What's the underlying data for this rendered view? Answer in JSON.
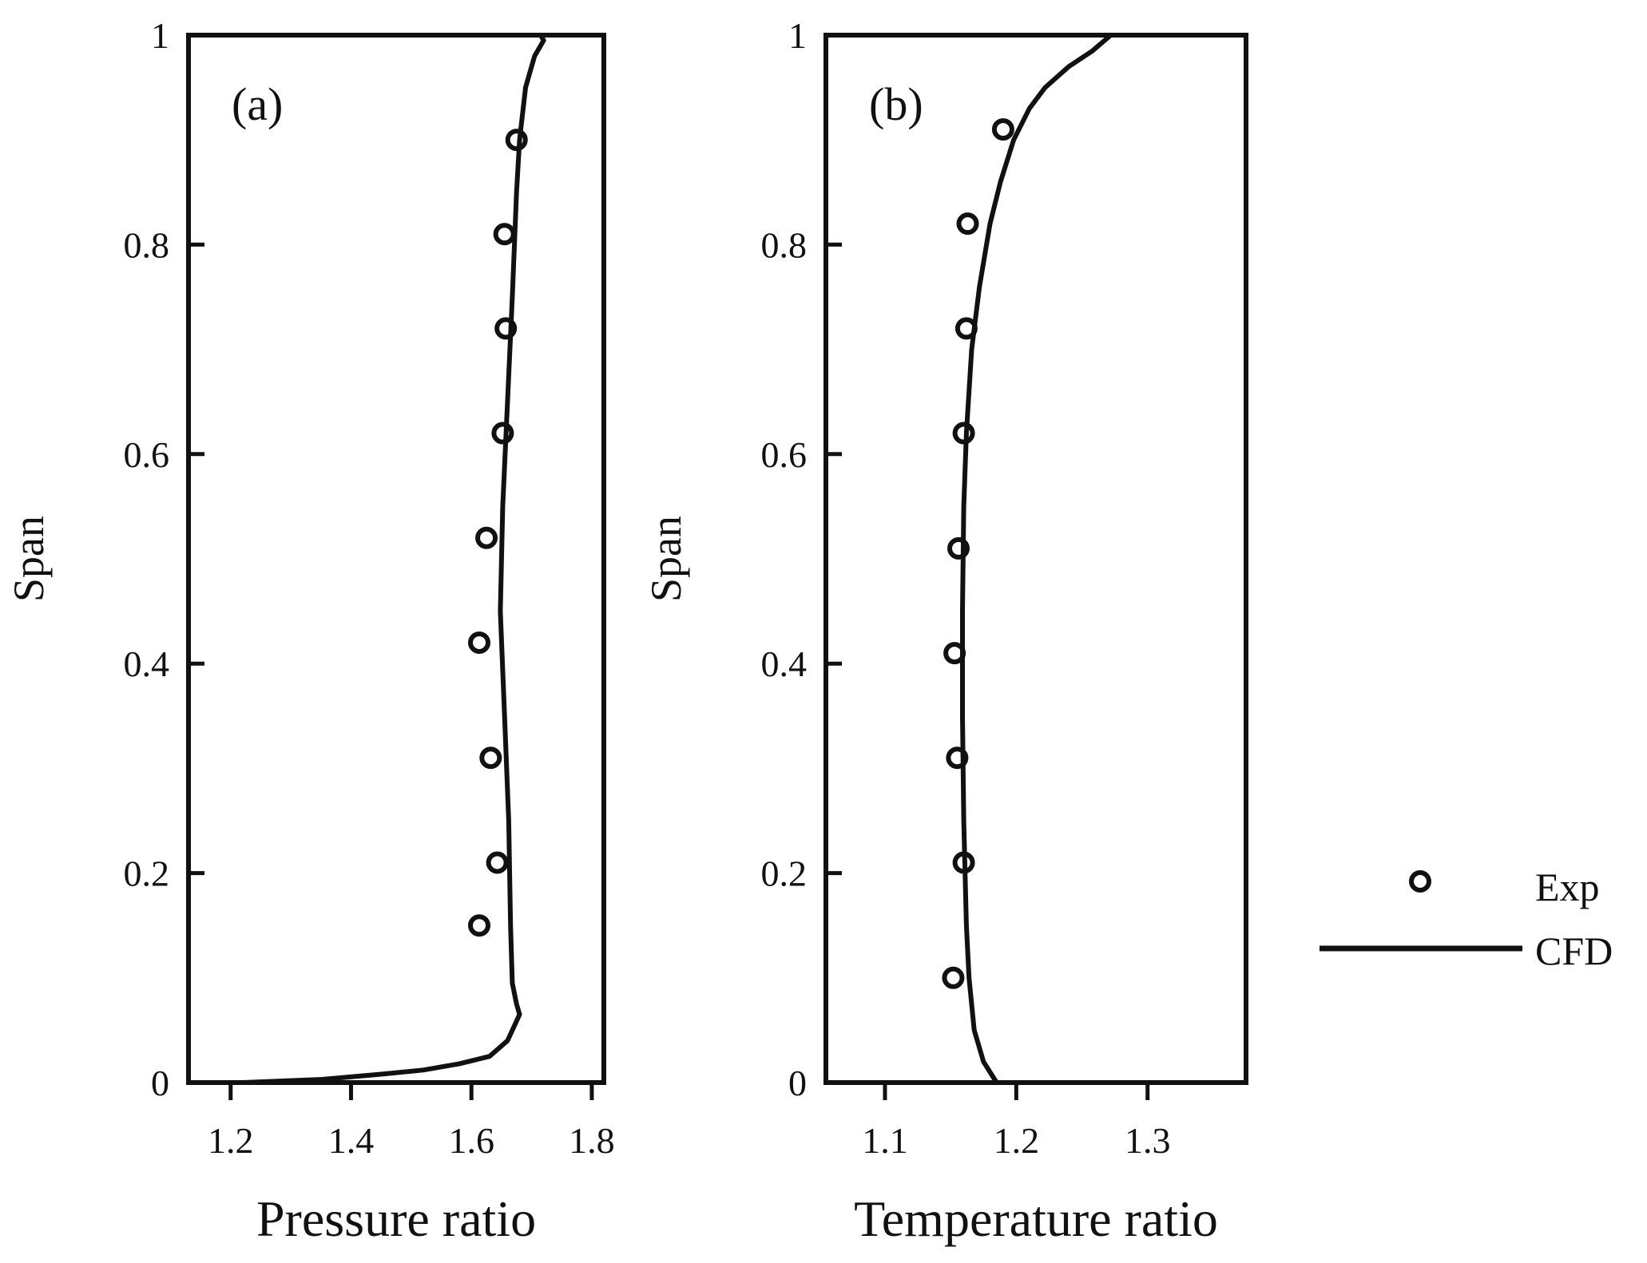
{
  "chart_data": [
    {
      "type": "line",
      "panel_label": "(a)",
      "xlabel": "Pressure ratio",
      "ylabel": "Span",
      "xlim": [
        1.13,
        1.82
      ],
      "ylim": [
        0,
        1
      ],
      "xticks": [
        1.2,
        1.4,
        1.6,
        1.8
      ],
      "xtick_labels": [
        "1.2",
        "1.4",
        "1.6",
        "1.8"
      ],
      "yticks": [
        0,
        0.2,
        0.4,
        0.6,
        0.8,
        1
      ],
      "ytick_labels": [
        "0",
        "0.2",
        "0.4",
        "0.6",
        "0.8",
        "1"
      ],
      "grid": false,
      "series": [
        {
          "name": "Exp",
          "marker": "open-circle",
          "x": [
            1.675,
            1.655,
            1.657,
            1.652,
            1.625,
            1.613,
            1.632,
            1.643,
            1.613
          ],
          "y": [
            0.9,
            0.81,
            0.72,
            0.62,
            0.52,
            0.42,
            0.31,
            0.21,
            0.15
          ]
        },
        {
          "name": "CFD",
          "marker": "line",
          "x": [
            1.22,
            1.35,
            1.45,
            1.52,
            1.58,
            1.63,
            1.66,
            1.68,
            1.675,
            1.668,
            1.665,
            1.662,
            1.655,
            1.648,
            1.652,
            1.66,
            1.668,
            1.675,
            1.68,
            1.69,
            1.705,
            1.72,
            1.715,
            1.62,
            1.13
          ],
          "y": [
            0.0,
            0.003,
            0.008,
            0.012,
            0.018,
            0.025,
            0.04,
            0.065,
            0.075,
            0.095,
            0.15,
            0.25,
            0.35,
            0.45,
            0.55,
            0.65,
            0.75,
            0.85,
            0.9,
            0.95,
            0.98,
            0.995,
            1.0,
            1.0,
            1.0
          ]
        }
      ]
    },
    {
      "type": "line",
      "panel_label": "(b)",
      "xlabel": "Temperature ratio",
      "ylabel": "Span",
      "xlim": [
        1.055,
        1.375
      ],
      "ylim": [
        0,
        1
      ],
      "xticks": [
        1.1,
        1.2,
        1.3
      ],
      "xtick_labels": [
        "1.1",
        "1.2",
        "1.3"
      ],
      "yticks": [
        0,
        0.2,
        0.4,
        0.6,
        0.8,
        1
      ],
      "ytick_labels": [
        "0",
        "0.2",
        "0.4",
        "0.6",
        "0.8",
        "1"
      ],
      "grid": false,
      "series": [
        {
          "name": "Exp",
          "marker": "open-circle",
          "x": [
            1.19,
            1.163,
            1.162,
            1.16,
            1.156,
            1.153,
            1.155,
            1.16,
            1.152
          ],
          "y": [
            0.91,
            0.82,
            0.72,
            0.62,
            0.51,
            0.41,
            0.31,
            0.21,
            0.1
          ]
        },
        {
          "name": "CFD",
          "marker": "line",
          "x": [
            1.185,
            1.175,
            1.168,
            1.164,
            1.162,
            1.16,
            1.159,
            1.159,
            1.16,
            1.162,
            1.166,
            1.172,
            1.18,
            1.188,
            1.198,
            1.21,
            1.222,
            1.24,
            1.258,
            1.272
          ],
          "y": [
            0.0,
            0.02,
            0.05,
            0.1,
            0.15,
            0.25,
            0.35,
            0.45,
            0.55,
            0.62,
            0.7,
            0.76,
            0.82,
            0.86,
            0.9,
            0.93,
            0.95,
            0.97,
            0.985,
            1.0
          ]
        }
      ]
    }
  ],
  "legend": {
    "placement": "right",
    "entries": [
      {
        "label": "Exp",
        "marker": "open-circle"
      },
      {
        "label": "CFD",
        "marker": "line"
      }
    ]
  }
}
